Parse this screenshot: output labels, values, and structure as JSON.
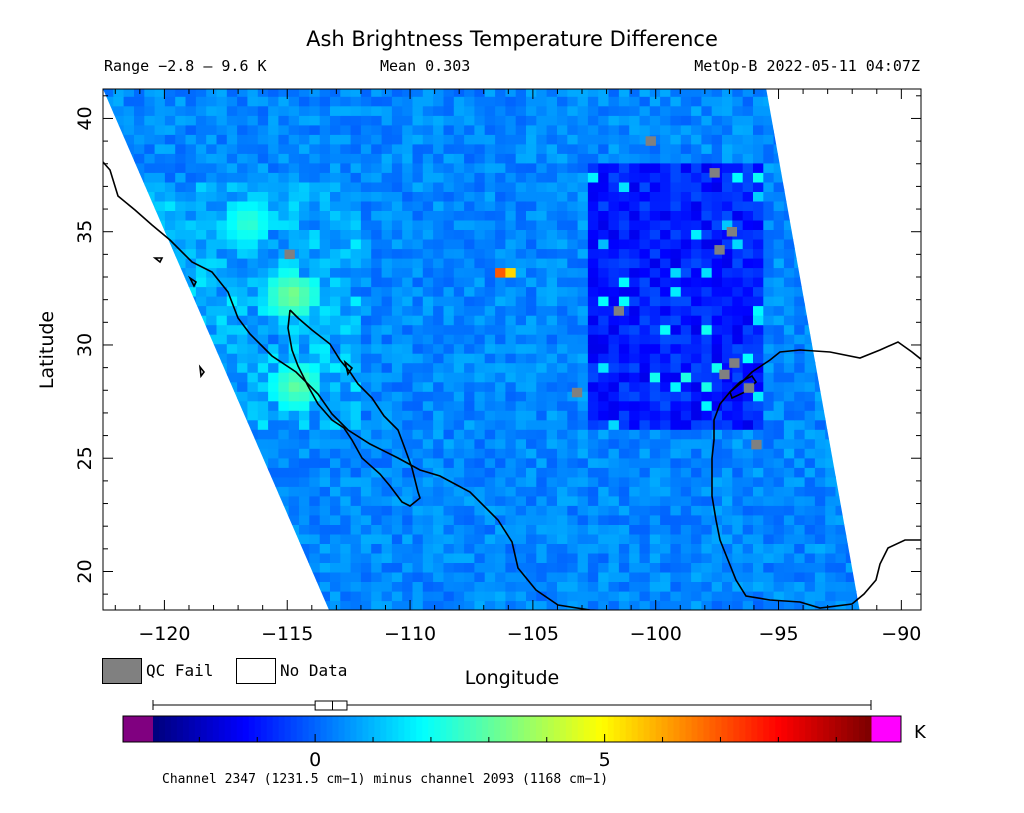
{
  "header": {
    "title": "Ash Brightness Temperature Difference",
    "range_text": "Range −2.8 – 9.6 K",
    "mean_text": "Mean 0.303",
    "satellite_time": "MetOp-B 2022-05-11 04:07Z"
  },
  "legend": {
    "qc_fail_label": "QC Fail",
    "no_data_label": "No Data",
    "qc_fail_color": "#808080",
    "no_data_color": "#ffffff"
  },
  "colorbar": {
    "unit": "K",
    "tick_labels": [
      "0",
      "5"
    ],
    "tick_values": [
      0,
      5
    ],
    "vmin": -2.8,
    "vmax": 9.6,
    "underflow_color": "#800080",
    "overflow_color": "#ff00ff",
    "box_plot": {
      "min": -2.8,
      "q1": 0,
      "median": 0.3,
      "q3": 0.55,
      "max": 9.6
    }
  },
  "footnote": "Channel 2347 (1231.5 cm−1) minus channel 2093 (1168 cm−1)",
  "chart_data": {
    "type": "heatmap",
    "title": "Ash Brightness Temperature Difference",
    "xlabel": "Longitude",
    "ylabel": "Latitude",
    "xlim": [
      -122.5,
      -89.2
    ],
    "ylim": [
      18.3,
      41.3
    ],
    "xticks": [
      -120,
      -115,
      -110,
      -105,
      -100,
      -95,
      -90
    ],
    "xtick_labels": [
      "−120",
      "−115",
      "−110",
      "−105",
      "−100",
      "−95",
      "−90"
    ],
    "yticks": [
      20,
      25,
      30,
      35,
      40
    ],
    "ytick_labels": [
      "20",
      "25",
      "30",
      "35",
      "40"
    ],
    "value_range": [
      -2.8,
      9.6
    ],
    "mean": 0.303,
    "unit": "K",
    "swath_corners": [
      [
        -122.5,
        41.3
      ],
      [
        -95.5,
        41.3
      ],
      [
        -91.7,
        18.3
      ],
      [
        -113.3,
        18.3
      ]
    ],
    "hotspots": [
      {
        "lon": -106.4,
        "lat": 33.0,
        "value": 8.5
      },
      {
        "lon": -115.0,
        "lat": 32.0,
        "value": 3.5
      },
      {
        "lon": -114.8,
        "lat": 28.0,
        "value": 3.2
      },
      {
        "lon": -116.8,
        "lat": 35.2,
        "value": 2.6
      }
    ],
    "low_region": {
      "lon_min": -103,
      "lon_max": -96,
      "lat_min": 26,
      "lat_max": 38,
      "value": -1.5
    },
    "qc_fail_points": [
      [
        -96.9,
        35.0
      ],
      [
        -97.4,
        34.2
      ],
      [
        -96.8,
        29.2
      ],
      [
        -96.2,
        28.1
      ],
      [
        -97.2,
        28.7
      ],
      [
        -100.2,
        39.0
      ],
      [
        -101.5,
        31.5
      ],
      [
        -103.2,
        27.9
      ],
      [
        -95.9,
        25.6
      ],
      [
        -97.6,
        37.6
      ],
      [
        -114.9,
        34.0
      ]
    ]
  }
}
